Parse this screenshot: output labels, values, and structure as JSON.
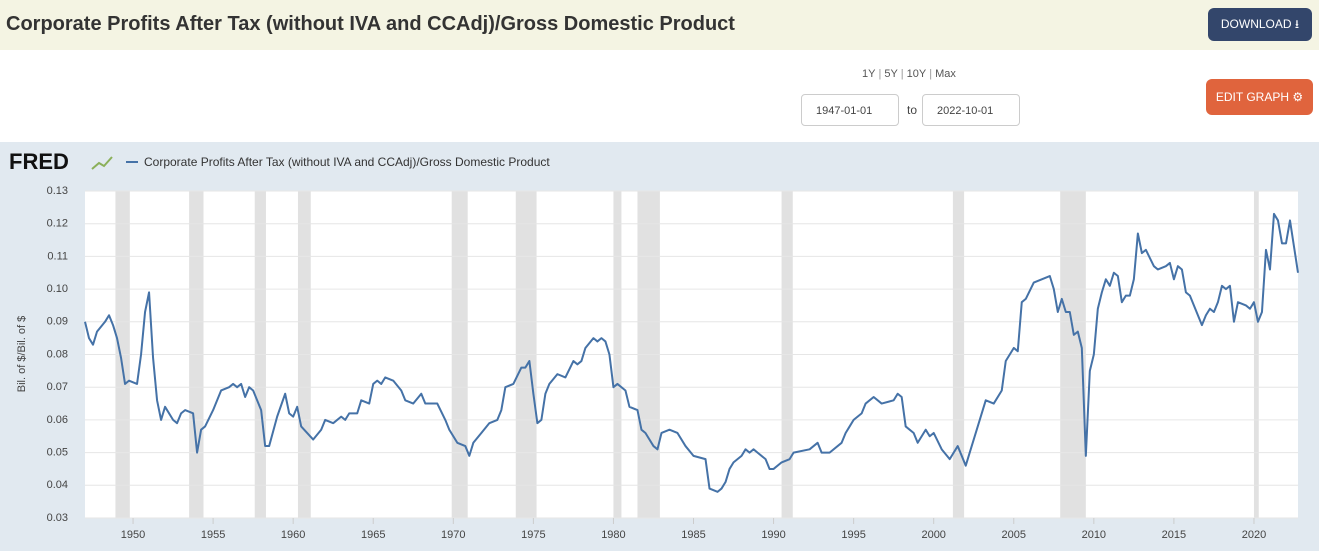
{
  "header": {
    "title": "Corporate Profits After Tax (without IVA and CCAdj)/Gross Domestic Product",
    "download": "DOWNLOAD"
  },
  "controls": {
    "ranges": [
      "1Y",
      "5Y",
      "10Y",
      "Max"
    ],
    "start": "1947-01-01",
    "to": "to",
    "end": "2022-10-01",
    "edit": "EDIT GRAPH"
  },
  "chart_data": {
    "type": "line",
    "logo": "FRED",
    "ylabel": "Bil. of $/Bil. of $",
    "xlim": [
      1947,
      2022.75
    ],
    "xticks": [
      1950,
      1955,
      1960,
      1965,
      1970,
      1975,
      1980,
      1985,
      1990,
      1995,
      2000,
      2005,
      2010,
      2015,
      2020
    ],
    "ylim": [
      0.03,
      0.13
    ],
    "yticks": [
      0.03,
      0.04,
      0.05,
      0.06,
      0.07,
      0.08,
      0.09,
      {
        "value": 0.1,
        "label": "0.10"
      },
      0.11,
      0.12,
      0.13
    ],
    "grid": true,
    "recessions": [
      [
        1948.9,
        1949.8
      ],
      [
        1953.5,
        1954.4
      ],
      [
        1957.6,
        1958.3
      ],
      [
        1960.3,
        1961.1
      ],
      [
        1969.9,
        1970.9
      ],
      [
        1973.9,
        1975.2
      ],
      [
        1980.0,
        1980.5
      ],
      [
        1981.5,
        1982.9
      ],
      [
        1990.5,
        1991.2
      ],
      [
        2001.2,
        2001.9
      ],
      [
        2007.9,
        2009.5
      ],
      [
        2020.0,
        2020.3
      ]
    ],
    "recession_color": "#e1e1e1",
    "x": [
      1947.0,
      1947.25,
      1947.5,
      1947.75,
      1948.25,
      1948.5,
      1948.75,
      1949.0,
      1949.25,
      1949.5,
      1949.75,
      1950.25,
      1950.5,
      1950.75,
      1951.0,
      1951.25,
      1951.5,
      1951.75,
      1952.0,
      1952.5,
      1952.75,
      1953.0,
      1953.25,
      1953.75,
      1954.0,
      1954.25,
      1954.5,
      1955.0,
      1955.5,
      1956.0,
      1956.25,
      1956.5,
      1956.75,
      1957.0,
      1957.25,
      1957.5,
      1958.0,
      1958.25,
      1958.5,
      1959.0,
      1959.5,
      1959.75,
      1960.0,
      1960.25,
      1960.5,
      1961.25,
      1961.75,
      1962.0,
      1962.5,
      1963.0,
      1963.25,
      1963.5,
      1964.0,
      1964.25,
      1964.75,
      1965.0,
      1965.25,
      1965.5,
      1965.75,
      1966.25,
      1966.75,
      1967.0,
      1967.5,
      1968.0,
      1968.25,
      1969.0,
      1969.5,
      1969.75,
      1970.25,
      1970.75,
      1971.0,
      1971.25,
      1971.75,
      1972.25,
      1972.75,
      1973.0,
      1973.25,
      1973.75,
      1974.25,
      1974.5,
      1974.75,
      1975.0,
      1975.25,
      1975.5,
      1975.75,
      1976.0,
      1976.5,
      1977.0,
      1977.5,
      1977.75,
      1978.0,
      1978.25,
      1978.75,
      1979.0,
      1979.25,
      1979.5,
      1979.75,
      1980.0,
      1980.25,
      1980.75,
      1981.0,
      1981.5,
      1981.75,
      1982.0,
      1982.5,
      1982.75,
      1983.0,
      1983.5,
      1984.0,
      1984.5,
      1985.0,
      1985.75,
      1986.0,
      1986.5,
      1986.75,
      1987.0,
      1987.25,
      1987.5,
      1988.0,
      1988.25,
      1988.5,
      1988.75,
      1989.0,
      1989.5,
      1989.75,
      1990.0,
      1990.5,
      1991.0,
      1991.25,
      1992.25,
      1992.75,
      1993.0,
      1993.5,
      1994.25,
      1994.5,
      1994.75,
      1995.0,
      1995.5,
      1995.75,
      1996.25,
      1996.75,
      1997.5,
      1997.75,
      1998.0,
      1998.25,
      1998.75,
      1999.0,
      1999.5,
      1999.75,
      2000.0,
      2000.5,
      2001.0,
      2001.5,
      2002.0,
      2002.25,
      2002.75,
      2003.25,
      2003.75,
      2004.25,
      2004.5,
      2005.0,
      2005.25,
      2005.5,
      2005.75,
      2006.25,
      2006.75,
      2007.25,
      2007.5,
      2007.75,
      2008.0,
      2008.25,
      2008.5,
      2008.75,
      2009.0,
      2009.25,
      2009.5,
      2009.75,
      2010.0,
      2010.25,
      2010.5,
      2010.75,
      2011.0,
      2011.25,
      2011.5,
      2011.75,
      2012.0,
      2012.25,
      2012.5,
      2012.75,
      2013.0,
      2013.25,
      2013.75,
      2014.0,
      2014.5,
      2014.75,
      2015.0,
      2015.25,
      2015.5,
      2015.75,
      2016.0,
      2016.75,
      2017.0,
      2017.25,
      2017.5,
      2017.75,
      2018.0,
      2018.25,
      2018.5,
      2018.75,
      2019.0,
      2019.5,
      2019.75,
      2020.0,
      2020.25,
      2020.5,
      2020.75,
      2021.0,
      2021.25,
      2021.5,
      2021.75,
      2022.0,
      2022.25,
      2022.5,
      2022.75
    ],
    "series": [
      {
        "name": "Corporate Profits After Tax (without IVA and CCAdj)/Gross Domestic Product",
        "color": "#4572a7",
        "values": [
          0.09,
          0.085,
          0.083,
          0.087,
          0.09,
          0.092,
          0.089,
          0.085,
          0.079,
          0.071,
          0.072,
          0.071,
          0.08,
          0.093,
          0.099,
          0.079,
          0.066,
          0.06,
          0.064,
          0.06,
          0.059,
          0.062,
          0.063,
          0.062,
          0.05,
          0.057,
          0.058,
          0.063,
          0.069,
          0.07,
          0.071,
          0.07,
          0.071,
          0.067,
          0.07,
          0.069,
          0.063,
          0.052,
          0.052,
          0.061,
          0.068,
          0.062,
          0.061,
          0.064,
          0.058,
          0.054,
          0.057,
          0.06,
          0.059,
          0.061,
          0.06,
          0.062,
          0.062,
          0.066,
          0.065,
          0.071,
          0.072,
          0.071,
          0.073,
          0.072,
          0.069,
          0.066,
          0.065,
          0.068,
          0.065,
          0.065,
          0.06,
          0.057,
          0.053,
          0.052,
          0.049,
          0.053,
          0.056,
          0.059,
          0.06,
          0.063,
          0.07,
          0.071,
          0.076,
          0.076,
          0.078,
          0.068,
          0.059,
          0.06,
          0.068,
          0.071,
          0.074,
          0.073,
          0.078,
          0.077,
          0.078,
          0.082,
          0.085,
          0.084,
          0.085,
          0.084,
          0.08,
          0.07,
          0.071,
          0.069,
          0.064,
          0.063,
          0.057,
          0.056,
          0.052,
          0.051,
          0.056,
          0.057,
          0.056,
          0.052,
          0.049,
          0.048,
          0.039,
          0.038,
          0.039,
          0.041,
          0.045,
          0.047,
          0.049,
          0.051,
          0.05,
          0.051,
          0.05,
          0.048,
          0.045,
          0.045,
          0.047,
          0.048,
          0.05,
          0.051,
          0.053,
          0.05,
          0.05,
          0.053,
          0.056,
          0.058,
          0.06,
          0.062,
          0.065,
          0.067,
          0.065,
          0.066,
          0.068,
          0.067,
          0.058,
          0.056,
          0.053,
          0.057,
          0.055,
          0.056,
          0.051,
          0.048,
          0.052,
          0.046,
          0.05,
          0.058,
          0.066,
          0.065,
          0.069,
          0.078,
          0.082,
          0.081,
          0.096,
          0.097,
          0.102,
          0.103,
          0.104,
          0.1,
          0.093,
          0.097,
          0.093,
          0.093,
          0.086,
          0.087,
          0.082,
          0.049,
          0.075,
          0.08,
          0.094,
          0.099,
          0.103,
          0.101,
          0.105,
          0.104,
          0.096,
          0.098,
          0.098,
          0.103,
          0.117,
          0.111,
          0.112,
          0.107,
          0.106,
          0.107,
          0.108,
          0.103,
          0.107,
          0.106,
          0.099,
          0.098,
          0.089,
          0.092,
          0.094,
          0.093,
          0.096,
          0.101,
          0.1,
          0.101,
          0.09,
          0.096,
          0.095,
          0.094,
          0.096,
          0.09,
          0.093,
          0.112,
          0.106,
          0.123,
          0.121,
          0.114,
          0.114,
          0.121,
          0.113,
          0.105
        ]
      }
    ]
  }
}
